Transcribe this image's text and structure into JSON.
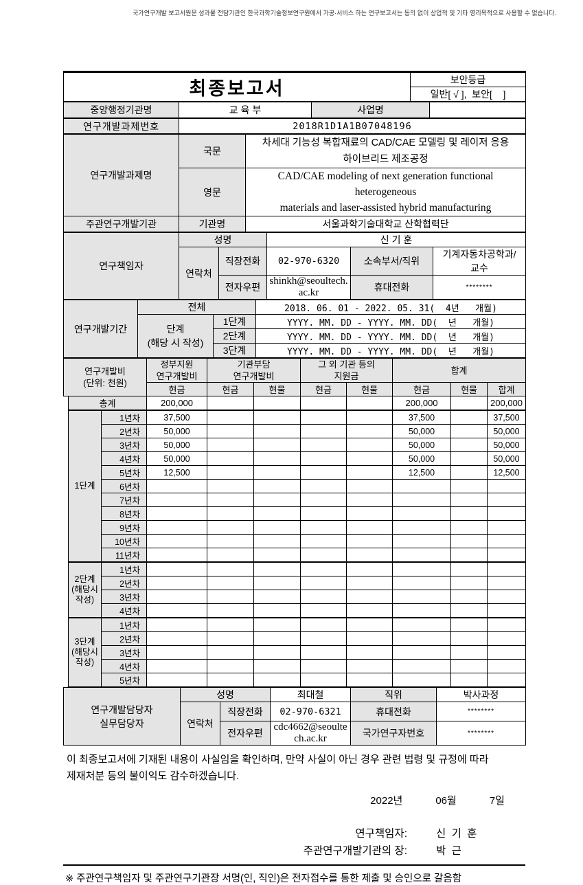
{
  "top_disclaimer": "국가연구개발 보고서원문 성과물 전담기관인 한국과학기술정보연구원에서 가공·서비스 하는 연구보고서는 동의 없이 상업적 및 기타 영리목적으로 사용할 수 없습니다.",
  "header": {
    "title": "최종보고서",
    "security_label": "보안등급",
    "security_value": "일반[ √ ],  보안[    ]"
  },
  "info": {
    "ministry_label": "중앙행정기관명",
    "ministry": "교 육 부",
    "program_label": "사업명",
    "program": "",
    "task_no_label": "연구개발과제번호",
    "task_no": "2018R1D1A1B07048196",
    "task_name_label": "연구개발과제명",
    "korean_label": "국문",
    "korean_title": "차세대 기능성 복합재료의 CAD/CAE 모델링 및 레이저 응용\n하이브리드 제조공정",
    "english_label": "영문",
    "english_title": "CAD/CAE modeling of next generation functional heterogeneous\nmaterials and laser-assisted hybrid manufacturing",
    "lead_org_label": "주관연구개발기관",
    "org_name_label": "기관명",
    "org_name": "서울과학기술대학교 산학협력단"
  },
  "pi": {
    "label": "연구책임자",
    "name_label": "성명",
    "name": "신 기 훈",
    "contact_label": "연락처",
    "work_phone_label": "직장전화",
    "work_phone": "02-970-6320",
    "dept_label": "소속부서/직위",
    "dept": "기계자동차공학과/\n교수",
    "email_label": "전자우편",
    "email": "shinkh@seoultech.ac.kr",
    "mobile_label": "휴대전화",
    "mobile": "********"
  },
  "period": {
    "label": "연구개발기간",
    "total_label": "전체",
    "total": "2018. 06. 01 - 2022. 05. 31(  4년   개월)",
    "stage_label": "단계\n(해당 시 작성)",
    "stages": [
      {
        "label": "1단계",
        "value": "YYYY. MM. DD - YYYY. MM. DD(  년   개월)"
      },
      {
        "label": "2단계",
        "value": "YYYY. MM. DD - YYYY. MM. DD(  년   개월)"
      },
      {
        "label": "3단계",
        "value": "YYYY. MM. DD - YYYY. MM. DD(  년   개월)"
      }
    ]
  },
  "budget": {
    "label": "연구개발비\n(단위: 천원)",
    "group_headers": [
      "정부지원\n연구개발비",
      "기관부담\n연구개발비",
      "그 외 기관 등의\n지원금",
      "합계"
    ],
    "sub_headers": [
      "현금",
      "현금",
      "현물",
      "현금",
      "현물",
      "현금",
      "현물",
      "합계"
    ],
    "total": {
      "label": "총계",
      "values": [
        "200,000",
        "",
        "",
        "",
        "",
        "200,000",
        "",
        "200,000"
      ]
    },
    "stages": [
      {
        "label": "1단계",
        "rows": [
          {
            "year": "1년차",
            "values": [
              "37,500",
              "",
              "",
              "",
              "",
              "37,500",
              "",
              "37,500"
            ]
          },
          {
            "year": "2년차",
            "values": [
              "50,000",
              "",
              "",
              "",
              "",
              "50,000",
              "",
              "50,000"
            ]
          },
          {
            "year": "3년차",
            "values": [
              "50,000",
              "",
              "",
              "",
              "",
              "50,000",
              "",
              "50,000"
            ]
          },
          {
            "year": "4년차",
            "values": [
              "50,000",
              "",
              "",
              "",
              "",
              "50,000",
              "",
              "50,000"
            ]
          },
          {
            "year": "5년차",
            "values": [
              "12,500",
              "",
              "",
              "",
              "",
              "12,500",
              "",
              "12,500"
            ]
          },
          {
            "year": "6년차",
            "values": [
              "",
              "",
              "",
              "",
              "",
              "",
              "",
              ""
            ]
          },
          {
            "year": "7년차",
            "values": [
              "",
              "",
              "",
              "",
              "",
              "",
              "",
              ""
            ]
          },
          {
            "year": "8년차",
            "values": [
              "",
              "",
              "",
              "",
              "",
              "",
              "",
              ""
            ]
          },
          {
            "year": "9년차",
            "values": [
              "",
              "",
              "",
              "",
              "",
              "",
              "",
              ""
            ]
          },
          {
            "year": "10년차",
            "values": [
              "",
              "",
              "",
              "",
              "",
              "",
              "",
              ""
            ]
          },
          {
            "year": "11년차",
            "values": [
              "",
              "",
              "",
              "",
              "",
              "",
              "",
              ""
            ]
          }
        ]
      },
      {
        "label": "2단계\n(해당시\n작성)",
        "rows": [
          {
            "year": "1년차",
            "values": [
              "",
              "",
              "",
              "",
              "",
              "",
              "",
              ""
            ]
          },
          {
            "year": "2년차",
            "values": [
              "",
              "",
              "",
              "",
              "",
              "",
              "",
              ""
            ]
          },
          {
            "year": "3년차",
            "values": [
              "",
              "",
              "",
              "",
              "",
              "",
              "",
              ""
            ]
          },
          {
            "year": "4년차",
            "values": [
              "",
              "",
              "",
              "",
              "",
              "",
              "",
              ""
            ]
          }
        ]
      },
      {
        "label": "3단계\n(해당시\n작성)",
        "rows": [
          {
            "year": "1년차",
            "values": [
              "",
              "",
              "",
              "",
              "",
              "",
              "",
              ""
            ]
          },
          {
            "year": "2년차",
            "values": [
              "",
              "",
              "",
              "",
              "",
              "",
              "",
              ""
            ]
          },
          {
            "year": "3년차",
            "values": [
              "",
              "",
              "",
              "",
              "",
              "",
              "",
              ""
            ]
          },
          {
            "year": "4년차",
            "values": [
              "",
              "",
              "",
              "",
              "",
              "",
              "",
              ""
            ]
          },
          {
            "year": "5년차",
            "values": [
              "",
              "",
              "",
              "",
              "",
              "",
              "",
              ""
            ]
          }
        ]
      }
    ]
  },
  "manager": {
    "label": "연구개발담당자\n실무담당자",
    "name_label": "성명",
    "name": "최대철",
    "position_label": "직위",
    "position": "박사과정",
    "contact_label": "연락처",
    "work_phone_label": "직장전화",
    "work_phone": "02-970-6321",
    "mobile_label": "휴대전화",
    "mobile": "********",
    "email_label": "전자우편",
    "email": "cdc4662@seoultech.ac.kr",
    "researcher_no_label": "국가연구자번호",
    "researcher_no": "********"
  },
  "footer": {
    "statement": "이 최종보고서에 기재된 내용이 사실임을 확인하며, 만약 사실이 아닌 경우 관련 법령 및 규정에 따라\n제재처분 등의 불이익도 감수하겠습니다.",
    "date_year": "2022년",
    "date_month": "06월",
    "date_day": "7일",
    "pi_sign_label": "연구책임자:",
    "pi_sign_name": "신 기 훈",
    "head_sign_label": "주관연구개발기관의 장:",
    "head_sign_name": "박 근",
    "note": "※ 주관연구책임자 및 주관연구기관장 서명(인, 직인)은 전자접수를 통한 제출 및 승인으로 갈음함"
  }
}
